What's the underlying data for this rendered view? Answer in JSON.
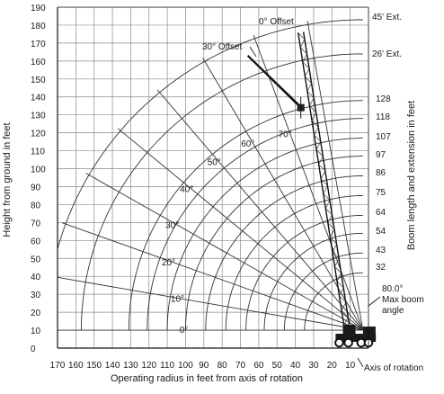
{
  "chart_data": {
    "type": "range-diagram",
    "xlabel": "Operating radius in feet from axis of rotation",
    "ylabel": "Height from ground in feet",
    "right_label": "Boom length and extension in feet",
    "xlim": [
      170,
      0
    ],
    "ylim": [
      0,
      190
    ],
    "x_ticks": [
      170,
      160,
      150,
      140,
      130,
      120,
      110,
      100,
      90,
      80,
      70,
      60,
      50,
      40,
      30,
      20,
      10
    ],
    "x_tick_labels": [
      "170",
      "160",
      "150",
      "140",
      "130",
      "120",
      "110",
      "100",
      "90",
      "80",
      "70",
      "60",
      "50",
      "40",
      "30",
      "20",
      "10"
    ],
    "y_ticks": [
      0,
      10,
      20,
      30,
      40,
      50,
      60,
      70,
      80,
      90,
      100,
      110,
      120,
      130,
      140,
      150,
      160,
      170,
      180,
      190
    ],
    "y_tick_labels": [
      "0",
      "10",
      "20",
      "30",
      "40",
      "50",
      "60",
      "70",
      "80",
      "90",
      "100",
      "110",
      "120",
      "130",
      "140",
      "150",
      "160",
      "170",
      "180",
      "190"
    ],
    "boom_lengths": [
      32,
      43,
      54,
      64,
      75,
      86,
      97,
      107,
      118,
      128
    ],
    "boom_length_labels": [
      "32",
      "43",
      "54",
      "64",
      "75",
      "86",
      "97",
      "107",
      "118",
      "128"
    ],
    "jib_tip_radii": [
      154,
      173
    ],
    "jib_labels": [
      "26' Ext.",
      "45' Ext."
    ],
    "angles_deg": [
      0,
      10,
      20,
      30,
      40,
      50,
      60,
      70
    ],
    "angle_labels": [
      "0°",
      "10°",
      "20°",
      "30°",
      "40°",
      "50°",
      "60°",
      "70°"
    ],
    "max_boom_angle": 80,
    "annotations": {
      "max_angle_value": "80.0°",
      "max_angle_text": "Max boom angle",
      "axis_of_rotation": "Axis of rotation",
      "offset_0": "0° Offset",
      "offset_30": "30° Offset"
    },
    "boom_0_offset": [
      [
        12,
        13
      ],
      [
        37,
        176
      ]
    ],
    "boom_30_offset": [
      [
        37,
        134
      ],
      [
        66,
        163
      ]
    ],
    "grid": true
  }
}
